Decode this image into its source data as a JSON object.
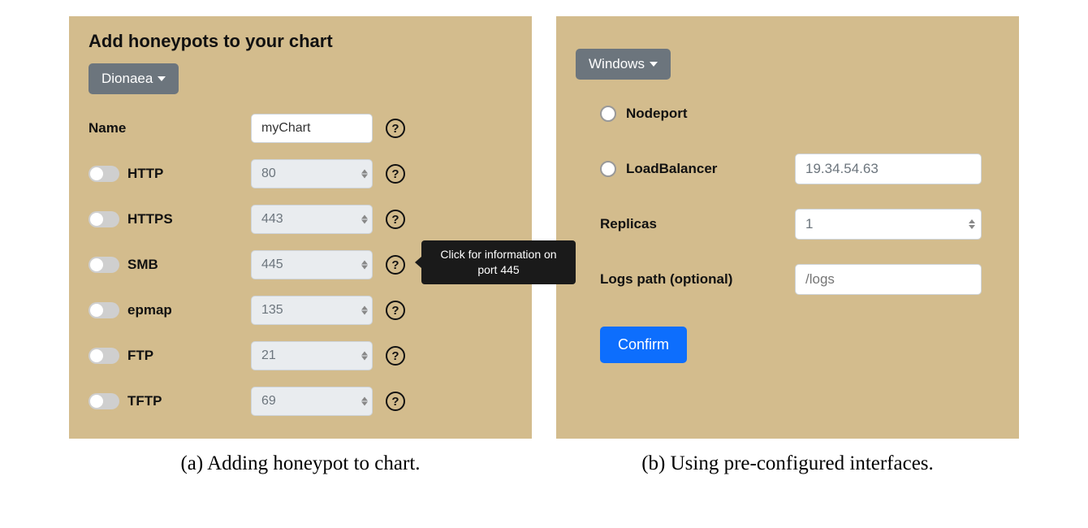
{
  "colors": {
    "panel_bg": "#d3bc8d",
    "dropdown_bg": "#6c757d",
    "disabled_input_bg": "#e9ecef",
    "tooltip_bg": "#1a1a1a",
    "confirm_bg": "#0d6efd"
  },
  "left": {
    "title": "Add honeypots to your chart",
    "dropdown_label": "Dionaea",
    "name_row": {
      "label": "Name",
      "value": "myChart"
    },
    "protocols": [
      {
        "name": "HTTP",
        "port": "80"
      },
      {
        "name": "HTTPS",
        "port": "443"
      },
      {
        "name": "SMB",
        "port": "445",
        "tooltip": "Click for information on port 445"
      },
      {
        "name": "epmap",
        "port": "135"
      },
      {
        "name": "FTP",
        "port": "21"
      },
      {
        "name": "TFTP",
        "port": "69"
      }
    ],
    "caption": "(a) Adding honeypot to chart."
  },
  "right": {
    "dropdown_label": "Windows",
    "nodeport_label": "Nodeport",
    "loadbalancer_label": "LoadBalancer",
    "loadbalancer_value": "19.34.54.63",
    "replicas_label": "Replicas",
    "replicas_value": "1",
    "logs_label": "Logs path (optional)",
    "logs_placeholder": "/logs",
    "confirm_label": "Confirm",
    "caption": "(b) Using pre-configured interfaces."
  }
}
